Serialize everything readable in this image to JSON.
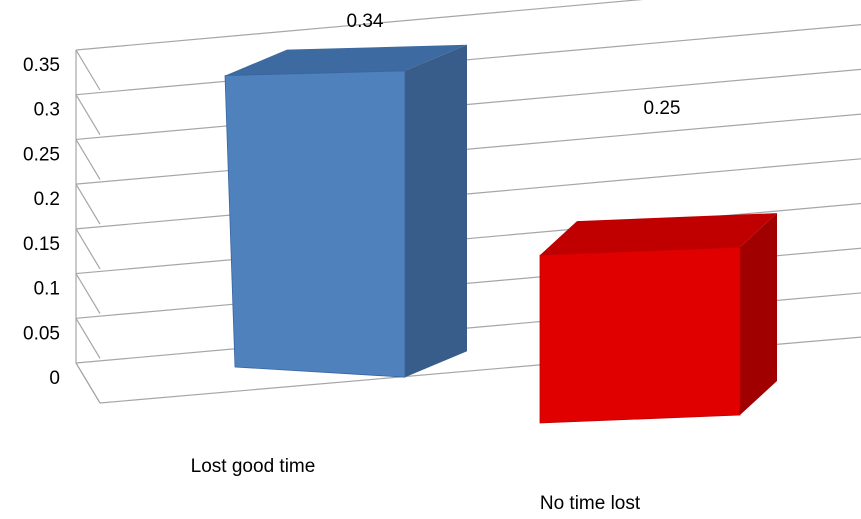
{
  "chart_data": {
    "type": "bar",
    "style": "3d-column",
    "categories": [
      "Lost good time",
      "No time lost"
    ],
    "values": [
      0.34,
      0.25
    ],
    "data_labels": [
      "0.34",
      "0.25"
    ],
    "title": "",
    "xlabel": "",
    "ylabel": "",
    "ylim": [
      0,
      0.35
    ],
    "y_ticks": [
      "0",
      "0.05",
      "0.1",
      "0.15",
      "0.2",
      "0.25",
      "0.3",
      "0.35"
    ],
    "grid": true,
    "legend": "none",
    "colors": [
      "#4f81bd",
      "#e00000"
    ]
  }
}
